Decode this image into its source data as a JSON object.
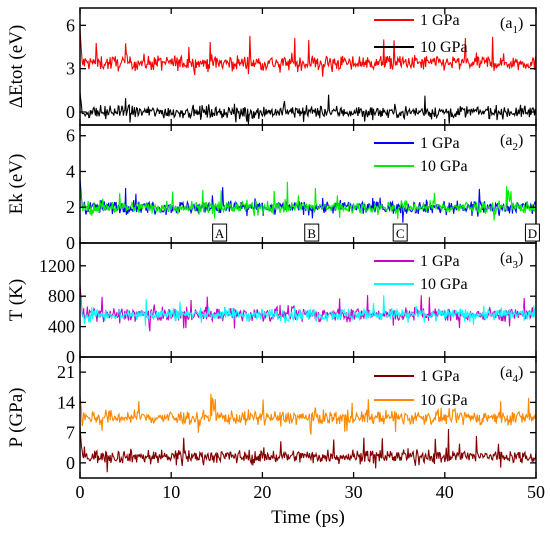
{
  "chart_data": {
    "type": "line",
    "x": {
      "min": 0,
      "max": 50,
      "ticks": [
        0,
        10,
        20,
        30,
        40,
        50
      ],
      "label": "Time (ps)"
    },
    "panels": [
      {
        "id": "a1",
        "tag_main": "(a",
        "tag_sub": "1",
        "tag_close": ")",
        "ylabel": "ΔEtot (eV)",
        "ylim": [
          -0.9,
          7.2
        ],
        "yticks": [
          0,
          3,
          6
        ],
        "series": [
          {
            "name": "1 GPa",
            "color": "#ff0000",
            "mean": 3.4,
            "noise": 0.55
          },
          {
            "name": "10 GPa",
            "color": "#000000",
            "mean": 0.0,
            "noise": 0.45
          }
        ]
      },
      {
        "id": "a2",
        "tag_main": "(a",
        "tag_sub": "2",
        "tag_close": ")",
        "ylabel": "Ek (eV)",
        "ylim": [
          0,
          6.6
        ],
        "yticks": [
          0,
          2,
          4,
          6
        ],
        "series": [
          {
            "name": "1 GPa",
            "color": "#0000ff",
            "mean": 2.0,
            "noise": 0.38
          },
          {
            "name": "10 GPa",
            "color": "#00ee00",
            "mean": 2.0,
            "noise": 0.36
          }
        ],
        "markers": [
          {
            "label": "A",
            "x": 15.2
          },
          {
            "label": "B",
            "x": 25.3
          },
          {
            "label": "C",
            "x": 35.0
          },
          {
            "label": "D",
            "x": 49.5
          }
        ]
      },
      {
        "id": "a3",
        "tag_main": "(a",
        "tag_sub": "3",
        "tag_close": ")",
        "ylabel": "T (K)",
        "ylim": [
          0,
          1500
        ],
        "yticks": [
          0,
          400,
          800,
          1200
        ],
        "series": [
          {
            "name": "1 GPa",
            "color": "#cc00cc",
            "mean": 560,
            "noise": 95
          },
          {
            "name": "10 GPa",
            "color": "#00ffff",
            "mean": 560,
            "noise": 85
          }
        ]
      },
      {
        "id": "a4",
        "tag_main": "(a",
        "tag_sub": "4",
        "tag_close": ")",
        "ylabel": "P (GPa)",
        "ylim": [
          -3.5,
          24.5
        ],
        "yticks": [
          0,
          7,
          14,
          21
        ],
        "series": [
          {
            "name": "1 GPa",
            "color": "#800000",
            "mean": 1.5,
            "noise": 1.6
          },
          {
            "name": "10 GPa",
            "color": "#ff8800",
            "mean": 10.5,
            "noise": 1.7
          }
        ]
      }
    ]
  }
}
